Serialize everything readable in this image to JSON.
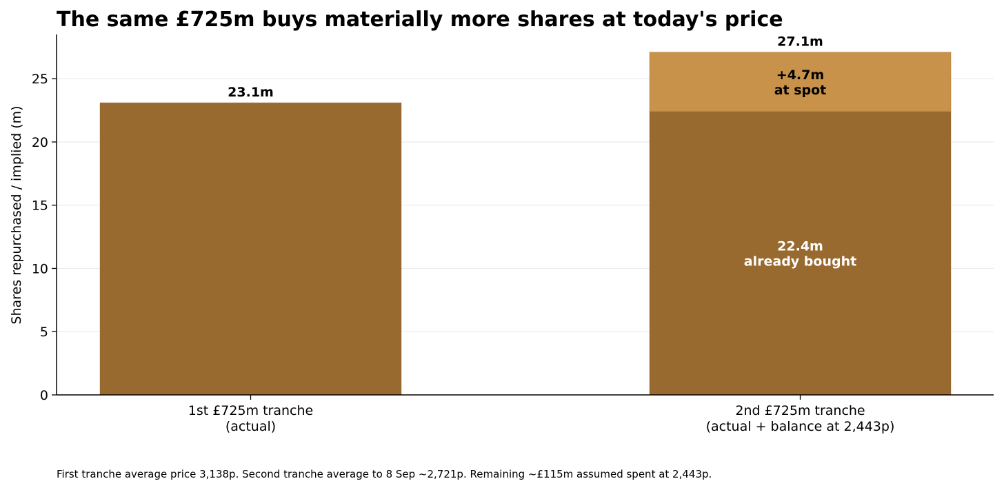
{
  "chart_data": {
    "type": "bar",
    "title": "The same £725m buys materially more shares at today's price",
    "ylabel": "Shares repurchased / implied (m)",
    "xlabel": "",
    "ylim": [
      0,
      28.5
    ],
    "yticks": [
      0,
      5,
      10,
      15,
      20,
      25
    ],
    "grid": "horizontal",
    "stacked": true,
    "categories": [
      [
        "1st £725m tranche",
        "(actual)"
      ],
      [
        "2nd £725m tranche",
        "(actual + balance at 2,443p)"
      ]
    ],
    "series": [
      {
        "values": [
          23.1,
          22.4
        ],
        "color": "#996a2f"
      },
      {
        "values": [
          0,
          4.7
        ],
        "color": "#c8924a"
      }
    ],
    "annotations": [
      {
        "category": 0,
        "y": 23.1,
        "lines": [
          "23.1m"
        ],
        "color": "#000000",
        "position": "above"
      },
      {
        "category": 1,
        "y": 27.1,
        "lines": [
          "27.1m"
        ],
        "color": "#000000",
        "position": "above"
      },
      {
        "category": 1,
        "y": 24.75,
        "lines": [
          "+4.7m",
          "at spot"
        ],
        "color": "#000000",
        "position": "center"
      },
      {
        "category": 1,
        "y": 11.2,
        "lines": [
          "22.4m",
          "already bought"
        ],
        "color": "#ffffff",
        "position": "center"
      }
    ],
    "footnote": "First tranche average price 3,138p. Second tranche average to 8 Sep ~2,721p. Remaining ~£115m assumed spent at 2,443p."
  }
}
